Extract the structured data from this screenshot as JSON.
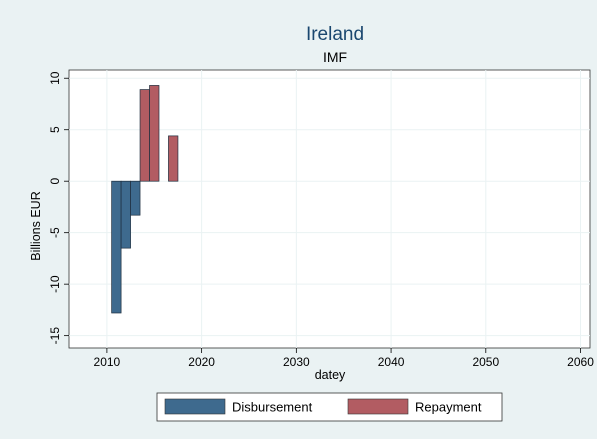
{
  "chart_data": {
    "type": "bar",
    "title": "Ireland",
    "subtitle": "IMF",
    "xlabel": "datey",
    "ylabel": "Billions EUR",
    "xlim": [
      2006,
      2061
    ],
    "ylim": [
      -16.2,
      10.8
    ],
    "xticks": [
      2010,
      2020,
      2030,
      2040,
      2050,
      2060
    ],
    "yticks": [
      10,
      5,
      0,
      -5,
      -10,
      -15
    ],
    "bar_width_years": 1,
    "grid": true,
    "legend_position": "bottom",
    "series": [
      {
        "name": "Disbursement",
        "color": "#3e6a8e",
        "x": [
          2011,
          2012,
          2013
        ],
        "values": [
          -12.8,
          -6.5,
          -3.3
        ]
      },
      {
        "name": "Repayment",
        "color": "#b25c62",
        "x": [
          2014,
          2015,
          2017
        ],
        "values": [
          8.9,
          9.3,
          4.4
        ]
      }
    ]
  }
}
